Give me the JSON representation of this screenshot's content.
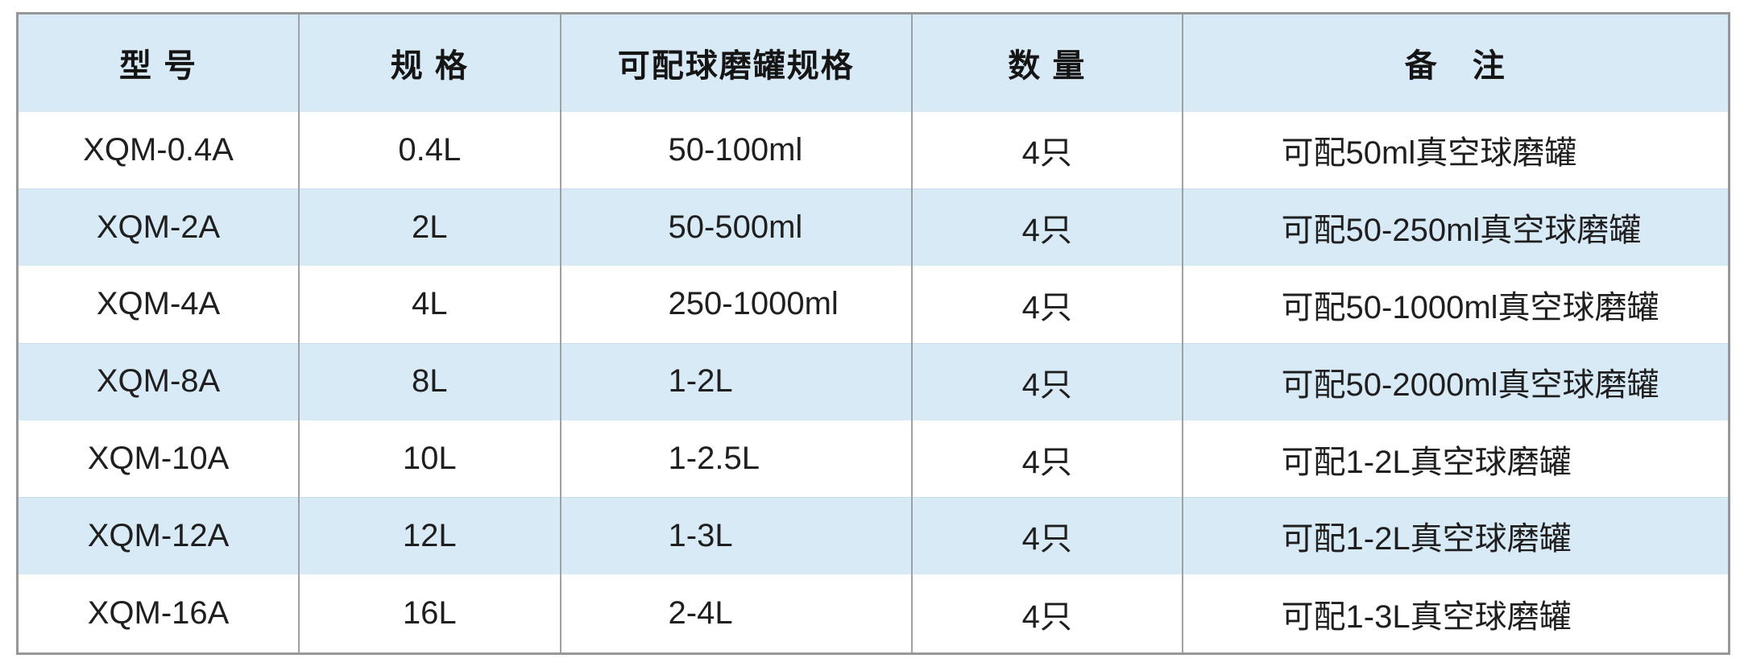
{
  "table": {
    "columns": [
      {
        "key": "model",
        "label": "型 号"
      },
      {
        "key": "spec",
        "label": "规 格"
      },
      {
        "key": "jar",
        "label": "可配球磨罐规格"
      },
      {
        "key": "qty",
        "label": "数 量"
      },
      {
        "key": "note",
        "label": "备　注"
      }
    ],
    "rows": [
      {
        "model": "XQM-0.4A",
        "spec": "0.4L",
        "jar": "50-100ml",
        "qty": "4只",
        "note": "可配50ml真空球磨罐"
      },
      {
        "model": "XQM-2A",
        "spec": "2L",
        "jar": "50-500ml",
        "qty": "4只",
        "note": "可配50-250ml真空球磨罐"
      },
      {
        "model": "XQM-4A",
        "spec": "4L",
        "jar": "250-1000ml",
        "qty": "4只",
        "note": "可配50-1000ml真空球磨罐"
      },
      {
        "model": "XQM-8A",
        "spec": "8L",
        "jar": "1-2L",
        "qty": "4只",
        "note": "可配50-2000ml真空球磨罐"
      },
      {
        "model": "XQM-10A",
        "spec": "10L",
        "jar": "1-2.5L",
        "qty": "4只",
        "note": "可配1-2L真空球磨罐"
      },
      {
        "model": "XQM-12A",
        "spec": "12L",
        "jar": "1-3L",
        "qty": "4只",
        "note": "可配1-2L真空球磨罐"
      },
      {
        "model": "XQM-16A",
        "spec": "16L",
        "jar": "2-4L",
        "qty": "4只",
        "note": "可配1-3L真空球磨罐"
      }
    ],
    "column_widths_pct": [
      16.45,
      15.27,
      20.54,
      15.79,
      31.95
    ],
    "colors": {
      "header_bg": "#d9eaf7",
      "stripe_bg": "#d9eaf7",
      "border_outer": "#979797",
      "border_inner": "#a0a0a0",
      "stripe_edge": "#c6dbec",
      "text": "#1f1f1f"
    }
  }
}
